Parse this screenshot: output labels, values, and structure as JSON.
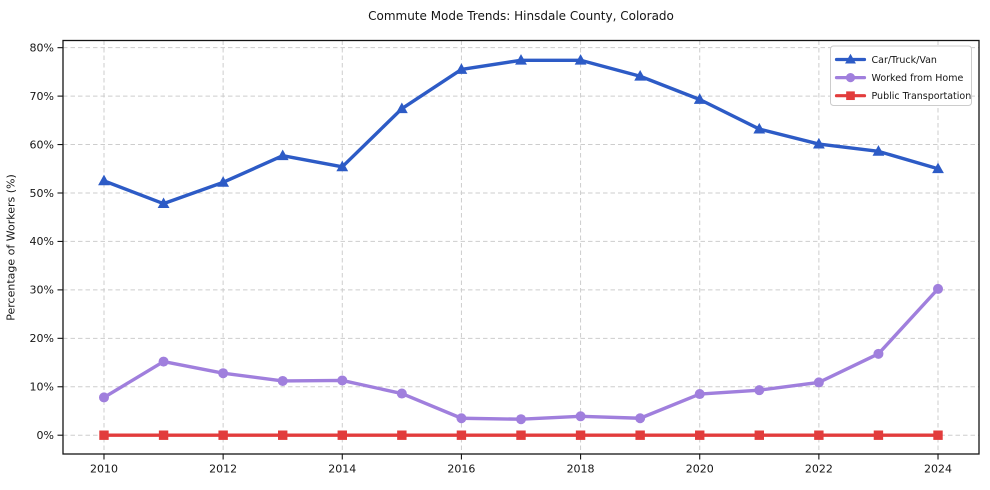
{
  "chart_data": {
    "type": "line",
    "title": "Commute Mode Trends: Hinsdale County, Colorado",
    "xlabel": "",
    "ylabel": "Percentage of Workers (%)",
    "x": [
      2010,
      2011,
      2012,
      2013,
      2014,
      2015,
      2016,
      2017,
      2018,
      2019,
      2020,
      2021,
      2022,
      2023,
      2024
    ],
    "series": [
      {
        "name": "Car/Truck/Van",
        "color": "#2d5bc6",
        "marker": "triangle",
        "values": [
          52.5,
          47.8,
          52.2,
          57.7,
          55.4,
          67.4,
          75.5,
          77.4,
          77.4,
          74.1,
          69.3,
          63.2,
          60.1,
          58.6,
          55.0
        ]
      },
      {
        "name": "Worked from Home",
        "color": "#a07fdd",
        "marker": "circle",
        "values": [
          7.8,
          15.2,
          12.8,
          11.2,
          11.3,
          8.6,
          3.5,
          3.3,
          3.9,
          3.5,
          8.5,
          9.3,
          10.9,
          16.8,
          30.2
        ]
      },
      {
        "name": "Public Transportation",
        "color": "#e23c3c",
        "marker": "square",
        "values": [
          0,
          0,
          0,
          0,
          0,
          0,
          0,
          0,
          0,
          0,
          0,
          0,
          0,
          0,
          0
        ]
      }
    ],
    "ylim": [
      0,
      80
    ],
    "yticks": [
      0,
      10,
      20,
      30,
      40,
      50,
      60,
      70,
      80
    ],
    "ytick_suffix": "%",
    "xticks": [
      2010,
      2012,
      2014,
      2016,
      2018,
      2020,
      2022,
      2024
    ],
    "grid": true,
    "grid_style": "dashed",
    "legend_position": "upper right"
  }
}
